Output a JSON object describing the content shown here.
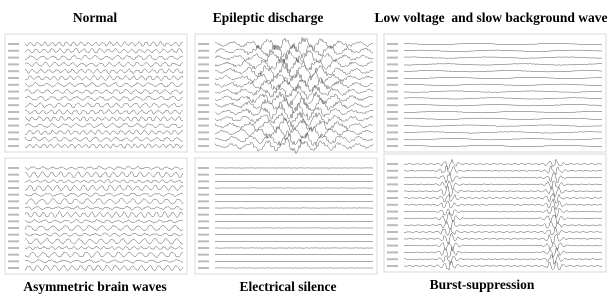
{
  "panels": [
    {
      "title": "Normal"
    },
    {
      "title": "Epileptic discharge"
    },
    {
      "title": "Low voltage  and slow background wave"
    },
    {
      "title": "Asymmetric brain waves"
    },
    {
      "title": "Electrical silence"
    },
    {
      "title": "Burst-suppression"
    }
  ]
}
